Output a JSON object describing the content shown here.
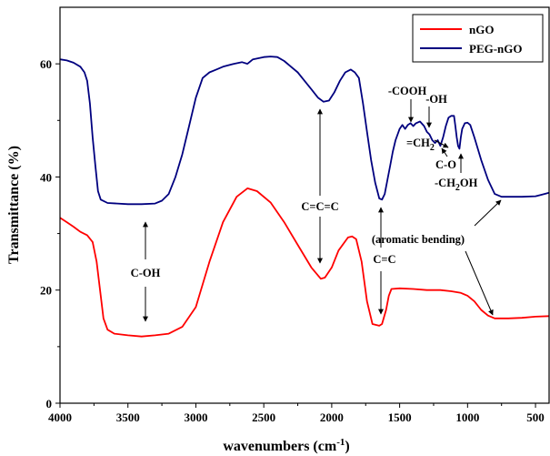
{
  "chart_data": {
    "type": "line",
    "xlabel": "wavenumbers (cm",
    "xlabel_sup": "-1",
    "xlabel_close": ")",
    "ylabel": "Transmittance (%)",
    "xlim": [
      4000,
      400
    ],
    "ylim": [
      0,
      70
    ],
    "x_ticks": [
      4000,
      3500,
      3000,
      2500,
      2000,
      1500,
      1000,
      500
    ],
    "y_ticks": [
      0,
      20,
      40,
      60
    ],
    "legend": {
      "position": "top-right",
      "entries": [
        "nGO",
        "PEG-nGO"
      ]
    },
    "series": [
      {
        "name": "nGO",
        "color": "#ff0000",
        "points": [
          [
            4000,
            32.8
          ],
          [
            3950,
            32
          ],
          [
            3900,
            31.2
          ],
          [
            3850,
            30.3
          ],
          [
            3800,
            29.7
          ],
          [
            3760,
            28.5
          ],
          [
            3730,
            25
          ],
          [
            3700,
            19
          ],
          [
            3680,
            15
          ],
          [
            3650,
            13
          ],
          [
            3600,
            12.3
          ],
          [
            3500,
            12
          ],
          [
            3400,
            11.8
          ],
          [
            3300,
            12
          ],
          [
            3200,
            12.3
          ],
          [
            3100,
            13.5
          ],
          [
            3000,
            17
          ],
          [
            2900,
            25
          ],
          [
            2800,
            32
          ],
          [
            2700,
            36.5
          ],
          [
            2620,
            38
          ],
          [
            2550,
            37.5
          ],
          [
            2450,
            35.5
          ],
          [
            2350,
            32
          ],
          [
            2250,
            28
          ],
          [
            2150,
            24
          ],
          [
            2080,
            22
          ],
          [
            2050,
            22.2
          ],
          [
            2000,
            24
          ],
          [
            1950,
            27
          ],
          [
            1880,
            29.3
          ],
          [
            1850,
            29.5
          ],
          [
            1820,
            29
          ],
          [
            1780,
            25
          ],
          [
            1740,
            18
          ],
          [
            1700,
            14
          ],
          [
            1650,
            13.7
          ],
          [
            1630,
            14
          ],
          [
            1600,
            16.5
          ],
          [
            1580,
            19
          ],
          [
            1560,
            20.2
          ],
          [
            1500,
            20.3
          ],
          [
            1400,
            20.2
          ],
          [
            1300,
            20
          ],
          [
            1200,
            20
          ],
          [
            1120,
            19.8
          ],
          [
            1050,
            19.5
          ],
          [
            1000,
            19
          ],
          [
            950,
            18
          ],
          [
            900,
            16.5
          ],
          [
            850,
            15.5
          ],
          [
            800,
            15
          ],
          [
            700,
            15
          ],
          [
            600,
            15.1
          ],
          [
            500,
            15.3
          ],
          [
            400,
            15.4
          ]
        ]
      },
      {
        "name": "PEG-nGO",
        "color": "#00007f",
        "points": [
          [
            4000,
            60.8
          ],
          [
            3950,
            60.6
          ],
          [
            3900,
            60.2
          ],
          [
            3850,
            59.5
          ],
          [
            3820,
            58.5
          ],
          [
            3800,
            57
          ],
          [
            3780,
            53
          ],
          [
            3760,
            47
          ],
          [
            3740,
            42
          ],
          [
            3720,
            37.5
          ],
          [
            3700,
            36
          ],
          [
            3650,
            35.4
          ],
          [
            3500,
            35.2
          ],
          [
            3400,
            35.2
          ],
          [
            3300,
            35.3
          ],
          [
            3250,
            35.8
          ],
          [
            3200,
            37
          ],
          [
            3150,
            40
          ],
          [
            3100,
            44
          ],
          [
            3050,
            49
          ],
          [
            3000,
            54
          ],
          [
            2950,
            57.5
          ],
          [
            2900,
            58.5
          ],
          [
            2850,
            59
          ],
          [
            2800,
            59.5
          ],
          [
            2720,
            60
          ],
          [
            2660,
            60.3
          ],
          [
            2620,
            60
          ],
          [
            2580,
            60.8
          ],
          [
            2500,
            61.2
          ],
          [
            2450,
            61.3
          ],
          [
            2400,
            61.2
          ],
          [
            2350,
            60.5
          ],
          [
            2300,
            59.5
          ],
          [
            2250,
            58.5
          ],
          [
            2200,
            57
          ],
          [
            2150,
            55.5
          ],
          [
            2100,
            54
          ],
          [
            2060,
            53.3
          ],
          [
            2020,
            53.5
          ],
          [
            1980,
            55
          ],
          [
            1940,
            57
          ],
          [
            1900,
            58.5
          ],
          [
            1860,
            59
          ],
          [
            1830,
            58.5
          ],
          [
            1800,
            57.5
          ],
          [
            1770,
            53
          ],
          [
            1740,
            48
          ],
          [
            1710,
            43
          ],
          [
            1680,
            39
          ],
          [
            1650,
            36.2
          ],
          [
            1630,
            36
          ],
          [
            1610,
            37
          ],
          [
            1590,
            39.5
          ],
          [
            1570,
            42
          ],
          [
            1550,
            44.5
          ],
          [
            1530,
            46.5
          ],
          [
            1500,
            48.5
          ],
          [
            1480,
            49.2
          ],
          [
            1460,
            48.5
          ],
          [
            1440,
            49.2
          ],
          [
            1420,
            49.5
          ],
          [
            1400,
            49
          ],
          [
            1380,
            49.5
          ],
          [
            1350,
            49.8
          ],
          [
            1320,
            49
          ],
          [
            1300,
            48
          ],
          [
            1280,
            47.5
          ],
          [
            1260,
            46.5
          ],
          [
            1240,
            46
          ],
          [
            1220,
            46.5
          ],
          [
            1200,
            45.5
          ],
          [
            1180,
            47
          ],
          [
            1160,
            49
          ],
          [
            1140,
            50.5
          ],
          [
            1120,
            50.8
          ],
          [
            1100,
            50.8
          ],
          [
            1090,
            49
          ],
          [
            1080,
            47
          ],
          [
            1070,
            45.5
          ],
          [
            1060,
            45
          ],
          [
            1050,
            47
          ],
          [
            1040,
            48.5
          ],
          [
            1020,
            49.5
          ],
          [
            1000,
            49.6
          ],
          [
            980,
            49.2
          ],
          [
            950,
            47
          ],
          [
            900,
            43
          ],
          [
            850,
            39.5
          ],
          [
            800,
            37
          ],
          [
            750,
            36.5
          ],
          [
            700,
            36.5
          ],
          [
            600,
            36.5
          ],
          [
            500,
            36.6
          ],
          [
            450,
            36.9
          ],
          [
            400,
            37.2
          ]
        ]
      }
    ],
    "annotations": {
      "c_oh": "C-OH",
      "c_c_c": "C=C=C",
      "c_c": "C=C",
      "cooh": "-COOH",
      "oh": "-OH",
      "ch2_eq": "=CH",
      "ch2_sub": "2",
      "c_o": "C-O",
      "ch2oh_a": "-CH",
      "ch2oh_sub": "2",
      "ch2oh_b": "OH",
      "aromatic": "(aromatic bending)"
    }
  }
}
